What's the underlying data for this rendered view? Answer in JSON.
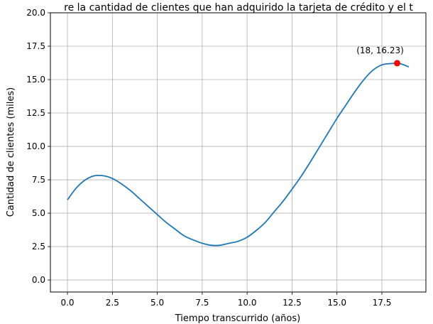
{
  "chart_data": {
    "type": "line",
    "title": "re la cantidad de clientes que han adquirido la tarjeta de crédito y el t",
    "xlabel": "Tiempo transcurrido (años)",
    "ylabel": "Cantidad de clientes (miles)",
    "xlim": [
      -0.95,
      19.95
    ],
    "ylim": [
      -0.9,
      20.0
    ],
    "x_ticks": [
      0.0,
      2.5,
      5.0,
      7.5,
      10.0,
      12.5,
      15.0,
      17.5
    ],
    "x_tick_labels": [
      "0.0",
      "2.5",
      "5.0",
      "7.5",
      "10.0",
      "12.5",
      "15.0",
      "17.5"
    ],
    "y_ticks": [
      0.0,
      2.5,
      5.0,
      7.5,
      10.0,
      12.5,
      15.0,
      17.5,
      20.0
    ],
    "y_tick_labels": [
      "0.0",
      "2.5",
      "5.0",
      "7.5",
      "10.0",
      "12.5",
      "15.0",
      "17.5",
      "20.0"
    ],
    "grid": true,
    "series": [
      {
        "color": "#1f77b4",
        "x": [
          0,
          0.5,
          1,
          1.5,
          2,
          2.5,
          3,
          3.5,
          4,
          4.5,
          5,
          5.5,
          6,
          6.5,
          7,
          7.5,
          8,
          8.5,
          9,
          9.5,
          10,
          10.5,
          11,
          11.5,
          12,
          12.5,
          13,
          13.5,
          14,
          14.5,
          15,
          15.5,
          16,
          16.5,
          17,
          17.5,
          18,
          18.5,
          19
        ],
        "y": [
          6.0,
          6.9,
          7.5,
          7.8,
          7.8,
          7.6,
          7.2,
          6.7,
          6.1,
          5.5,
          4.9,
          4.3,
          3.8,
          3.3,
          3.0,
          2.75,
          2.6,
          2.6,
          2.75,
          2.9,
          3.2,
          3.7,
          4.3,
          5.1,
          5.9,
          6.8,
          7.75,
          8.8,
          9.9,
          11.0,
          12.1,
          13.1,
          14.1,
          15.0,
          15.7,
          16.1,
          16.2,
          16.2,
          15.95
        ]
      }
    ],
    "highlight_point": {
      "x": 18.35,
      "y": 16.23,
      "color": "#ff0000",
      "label": "(18, 16.23)"
    }
  }
}
